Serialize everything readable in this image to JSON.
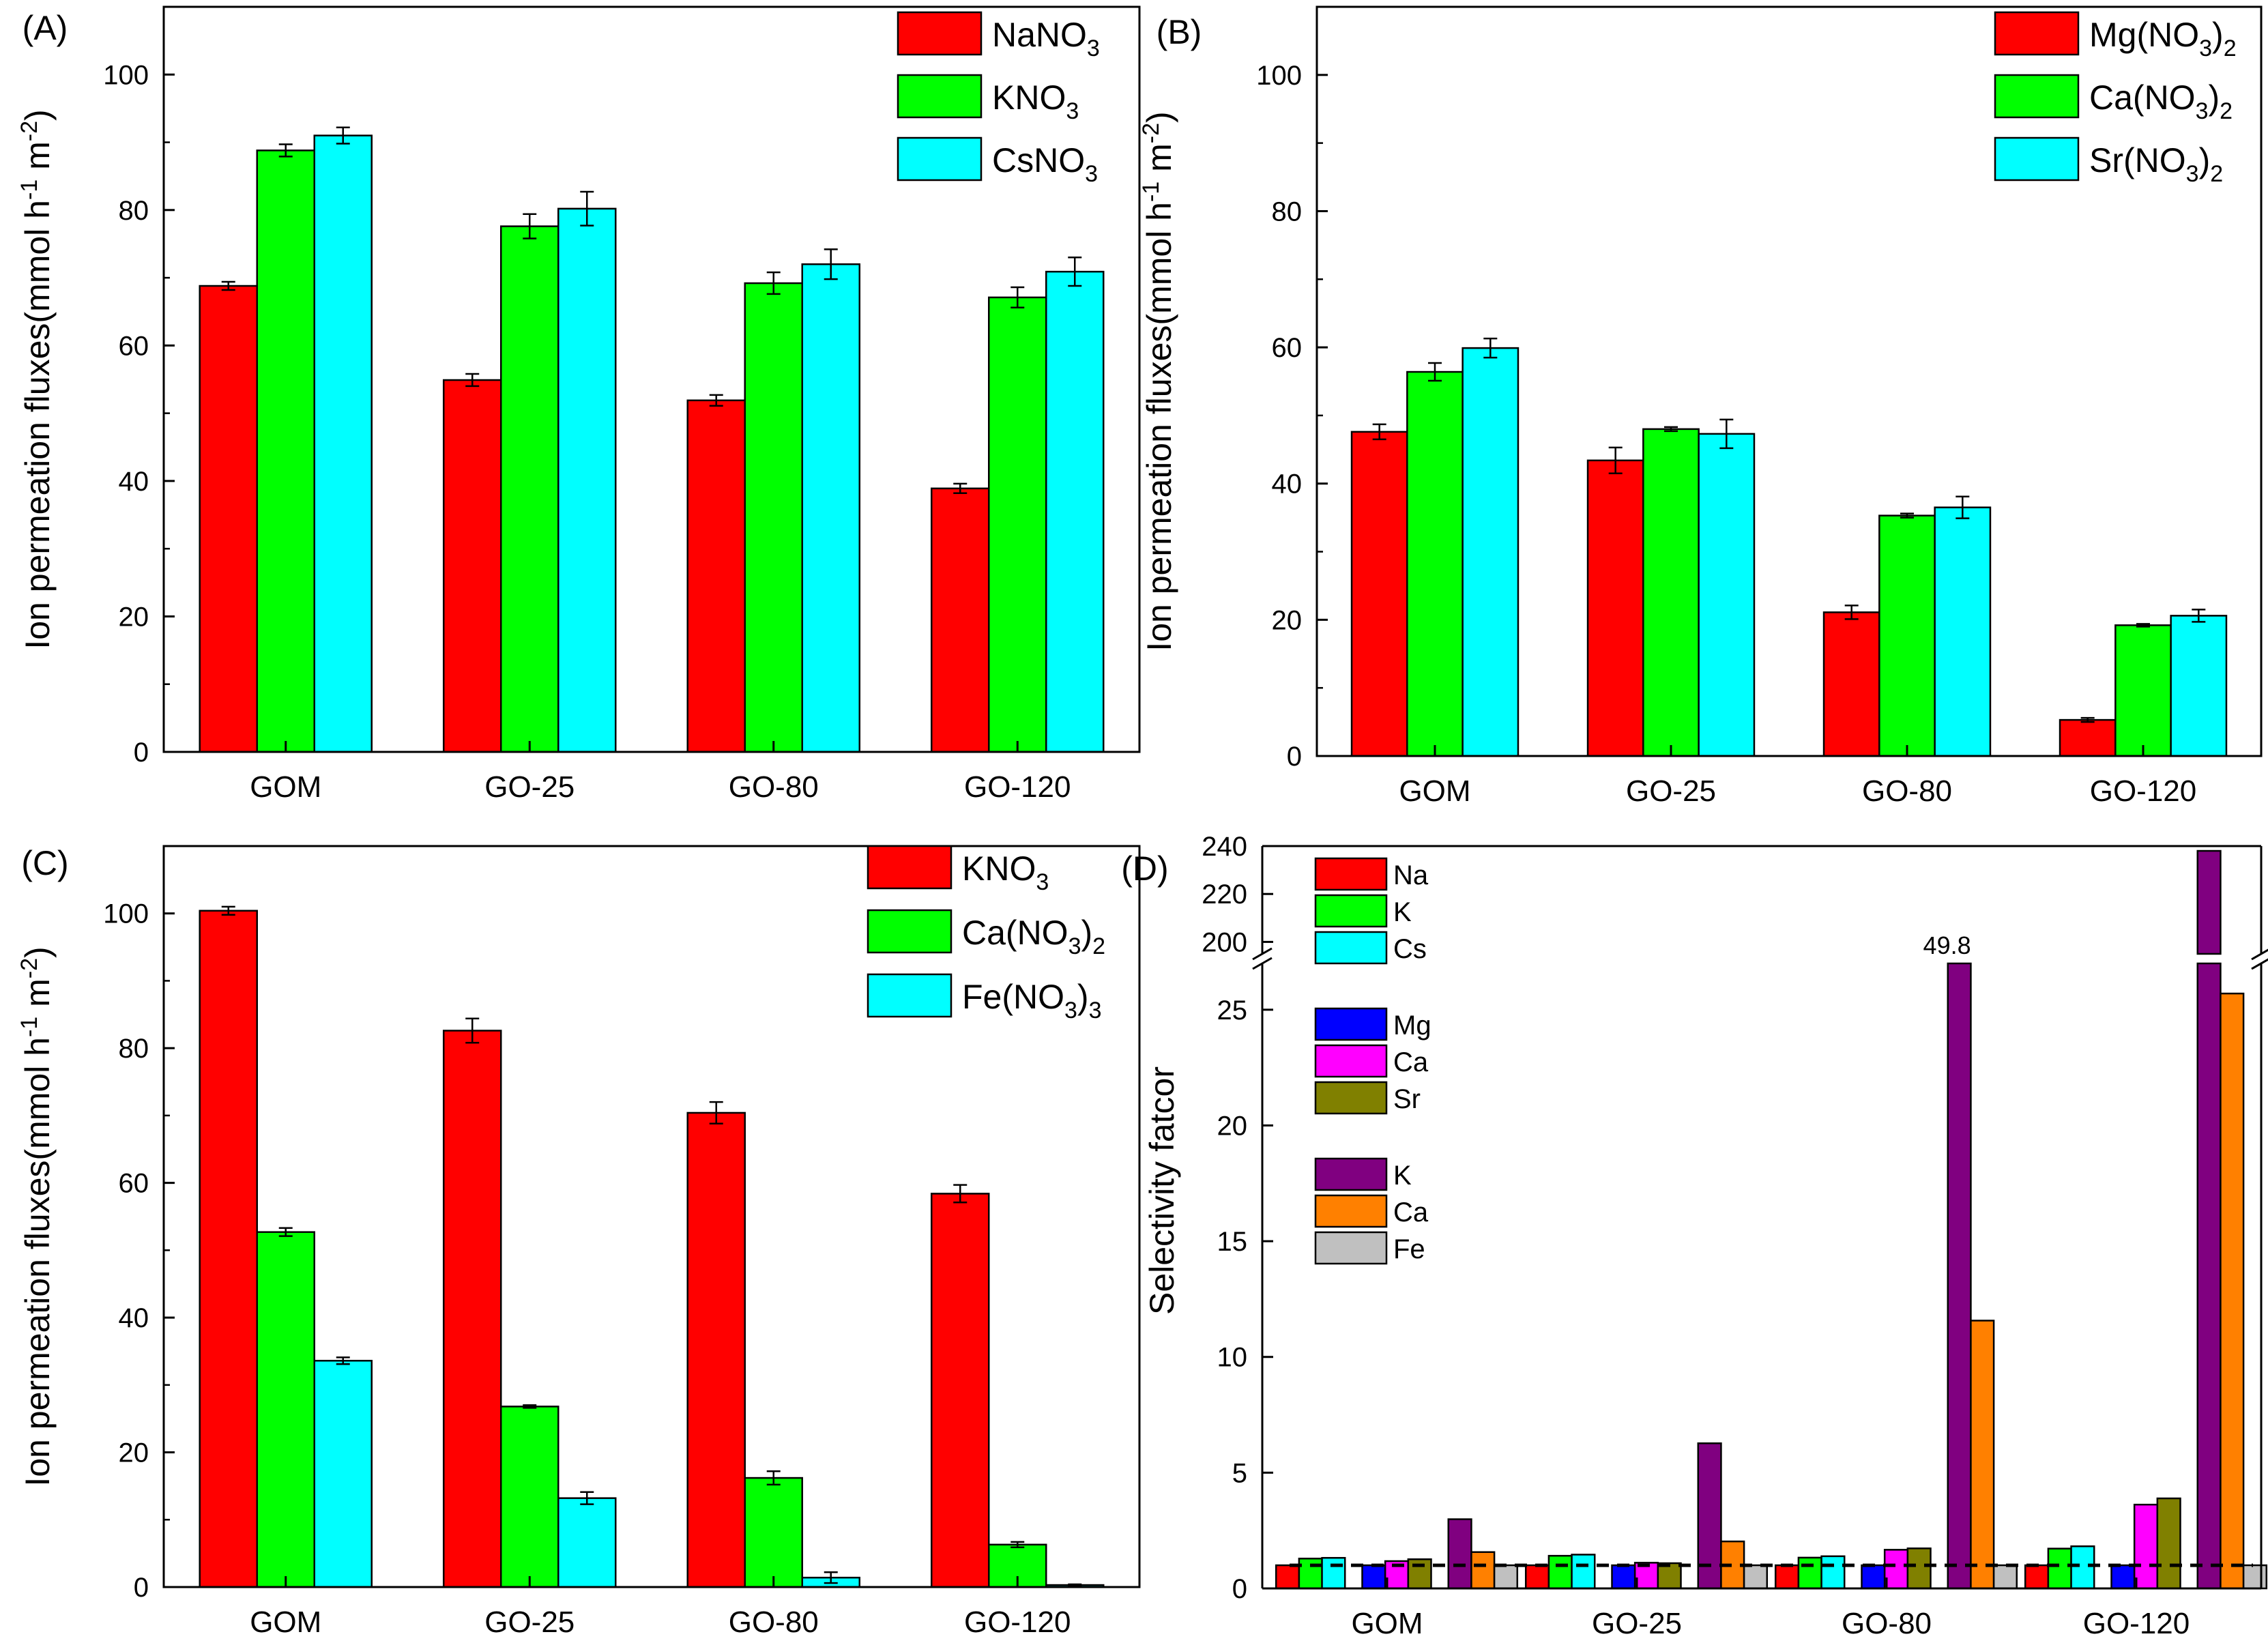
{
  "colors": {
    "red": "#ff0000",
    "green": "#00ff00",
    "cyan": "#00ffff",
    "blue": "#0000ff",
    "magenta": "#ff00ff",
    "olive": "#808000",
    "purple": "#800080",
    "orange": "#ff8000",
    "gray": "#c0c0c0"
  },
  "chart_data": [
    {
      "panel": "(A)",
      "type": "bar",
      "ylabel": "Ion permeation fluxes(mmol h-1 m-2)",
      "ylim": [
        0,
        110
      ],
      "yticks": [
        "0",
        "20",
        "40",
        "60",
        "80",
        "100"
      ],
      "categories": [
        "GOM",
        "GO-25",
        "GO-80",
        "GO-120"
      ],
      "legend_position": "top-right",
      "series": [
        {
          "name": "NaNO3",
          "color": "red",
          "values": [
            68.8,
            54.9,
            51.9,
            38.9
          ],
          "errors": [
            0.6,
            0.9,
            0.8,
            0.7
          ]
        },
        {
          "name": "KNO3",
          "color": "green",
          "values": [
            88.8,
            77.6,
            69.2,
            67.1
          ],
          "errors": [
            0.9,
            1.8,
            1.6,
            1.5
          ]
        },
        {
          "name": "CsNO3",
          "color": "cyan",
          "values": [
            91.0,
            80.2,
            72.0,
            70.9
          ],
          "errors": [
            1.2,
            2.5,
            2.2,
            2.1
          ]
        }
      ]
    },
    {
      "panel": "(B)",
      "type": "bar",
      "ylabel": "Ion permeation fluxes(mmol h-1 m-2)",
      "ylim": [
        0,
        110
      ],
      "yticks": [
        "0",
        "20",
        "40",
        "60",
        "80",
        "100"
      ],
      "categories": [
        "GOM",
        "GO-25",
        "GO-80",
        "GO-120"
      ],
      "legend_position": "top-right",
      "series": [
        {
          "name": "Mg(NO3)2",
          "color": "red",
          "values": [
            47.6,
            43.4,
            21.1,
            5.3
          ],
          "errors": [
            1.1,
            1.9,
            1.0,
            0.3
          ]
        },
        {
          "name": "Ca(NO3)2",
          "color": "green",
          "values": [
            56.4,
            48.0,
            35.3,
            19.2
          ],
          "errors": [
            1.3,
            0.3,
            0.3,
            0.2
          ]
        },
        {
          "name": "Sr(NO3)2",
          "color": "cyan",
          "values": [
            59.9,
            47.3,
            36.5,
            20.6
          ],
          "errors": [
            1.4,
            2.1,
            1.6,
            0.9
          ]
        }
      ]
    },
    {
      "panel": "(C)",
      "type": "bar",
      "ylabel": "Ion permeation fluxes(mmol h-1 m-2)",
      "ylim": [
        0,
        110
      ],
      "yticks": [
        "0",
        "20",
        "40",
        "60",
        "80",
        "100"
      ],
      "categories": [
        "GOM",
        "GO-25",
        "GO-80",
        "GO-120"
      ],
      "legend_position": "top-right",
      "series": [
        {
          "name": "KNO3",
          "color": "red",
          "values": [
            100.4,
            82.6,
            70.4,
            58.4
          ],
          "errors": [
            0.6,
            1.8,
            1.6,
            1.3
          ]
        },
        {
          "name": "Ca(NO3)2",
          "color": "green",
          "values": [
            52.7,
            26.8,
            16.2,
            6.3
          ],
          "errors": [
            0.6,
            0.2,
            1.0,
            0.4
          ]
        },
        {
          "name": "Fe(NO3)3",
          "color": "cyan",
          "values": [
            33.6,
            13.2,
            1.4,
            0.3
          ],
          "errors": [
            0.5,
            0.9,
            0.8,
            0.1
          ]
        }
      ]
    },
    {
      "panel": "(D)",
      "type": "bar",
      "ylabel": "Selectivity fatcor",
      "ylim": [
        0,
        27
      ],
      "ylim_upper": [
        195,
        240
      ],
      "axis_break": true,
      "yticks": [
        "0",
        "5",
        "10",
        "15",
        "20",
        "25"
      ],
      "yticks_upper": [
        "200",
        "220",
        "240"
      ],
      "reference_line": 1,
      "categories": [
        "GOM",
        "GO-25",
        "GO-80",
        "GO-120"
      ],
      "legend_position": "top-left",
      "groups": [
        {
          "series": [
            {
              "name": "Na",
              "color": "red",
              "values": [
                1.0,
                1.0,
                1.0,
                1.0
              ]
            },
            {
              "name": "K",
              "color": "green",
              "values": [
                1.29,
                1.41,
                1.33,
                1.72
              ]
            },
            {
              "name": "Cs",
              "color": "cyan",
              "values": [
                1.32,
                1.46,
                1.39,
                1.82
              ]
            }
          ]
        },
        {
          "series": [
            {
              "name": "Mg",
              "color": "blue",
              "values": [
                1.0,
                1.0,
                1.0,
                1.0
              ]
            },
            {
              "name": "Ca",
              "color": "magenta",
              "values": [
                1.18,
                1.11,
                1.67,
                3.62
              ]
            },
            {
              "name": "Sr",
              "color": "olive",
              "values": [
                1.26,
                1.09,
                1.73,
                3.89
              ]
            }
          ]
        },
        {
          "series": [
            {
              "name": "K",
              "color": "purple",
              "values": [
                2.99,
                6.27,
                49.8,
                238
              ]
            },
            {
              "name": "Ca",
              "color": "orange",
              "values": [
                1.57,
                2.03,
                11.57,
                25.7
              ]
            },
            {
              "name": "Fe",
              "color": "gray",
              "values": [
                1.0,
                1.0,
                1.0,
                1.0
              ]
            }
          ]
        }
      ],
      "annotation": "49.8"
    }
  ]
}
